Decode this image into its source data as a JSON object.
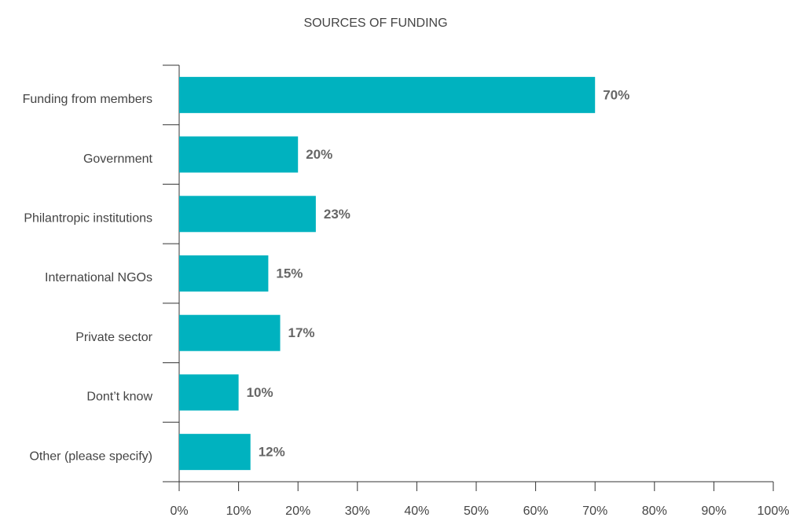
{
  "chart_data": {
    "type": "barh",
    "title": "SOURCES OF FUNDING",
    "categories": [
      "Funding from members",
      "Government",
      "Philantropic institutions",
      "International NGOs",
      "Private sector",
      "Dont’t know",
      "Other (please specify)"
    ],
    "values": [
      70,
      20,
      23,
      15,
      17,
      10,
      12
    ],
    "value_labels": [
      "70%",
      "20%",
      "23%",
      "15%",
      "17%",
      "10%",
      "12%"
    ],
    "color": "#00b2bf",
    "xlim": [
      0,
      100
    ],
    "xticks": [
      {
        "value": 0,
        "label": "0%"
      },
      {
        "value": 10,
        "label": "10%"
      },
      {
        "value": 20,
        "label": "20%"
      },
      {
        "value": 30,
        "label": "30%"
      },
      {
        "value": 40,
        "label": "40%"
      },
      {
        "value": 50,
        "label": "50%"
      },
      {
        "value": 60,
        "label": "60%"
      },
      {
        "value": 70,
        "label": "70%"
      },
      {
        "value": 80,
        "label": "80%"
      },
      {
        "value": 90,
        "label": "90%"
      },
      {
        "value": 100,
        "label": "100%"
      }
    ]
  }
}
